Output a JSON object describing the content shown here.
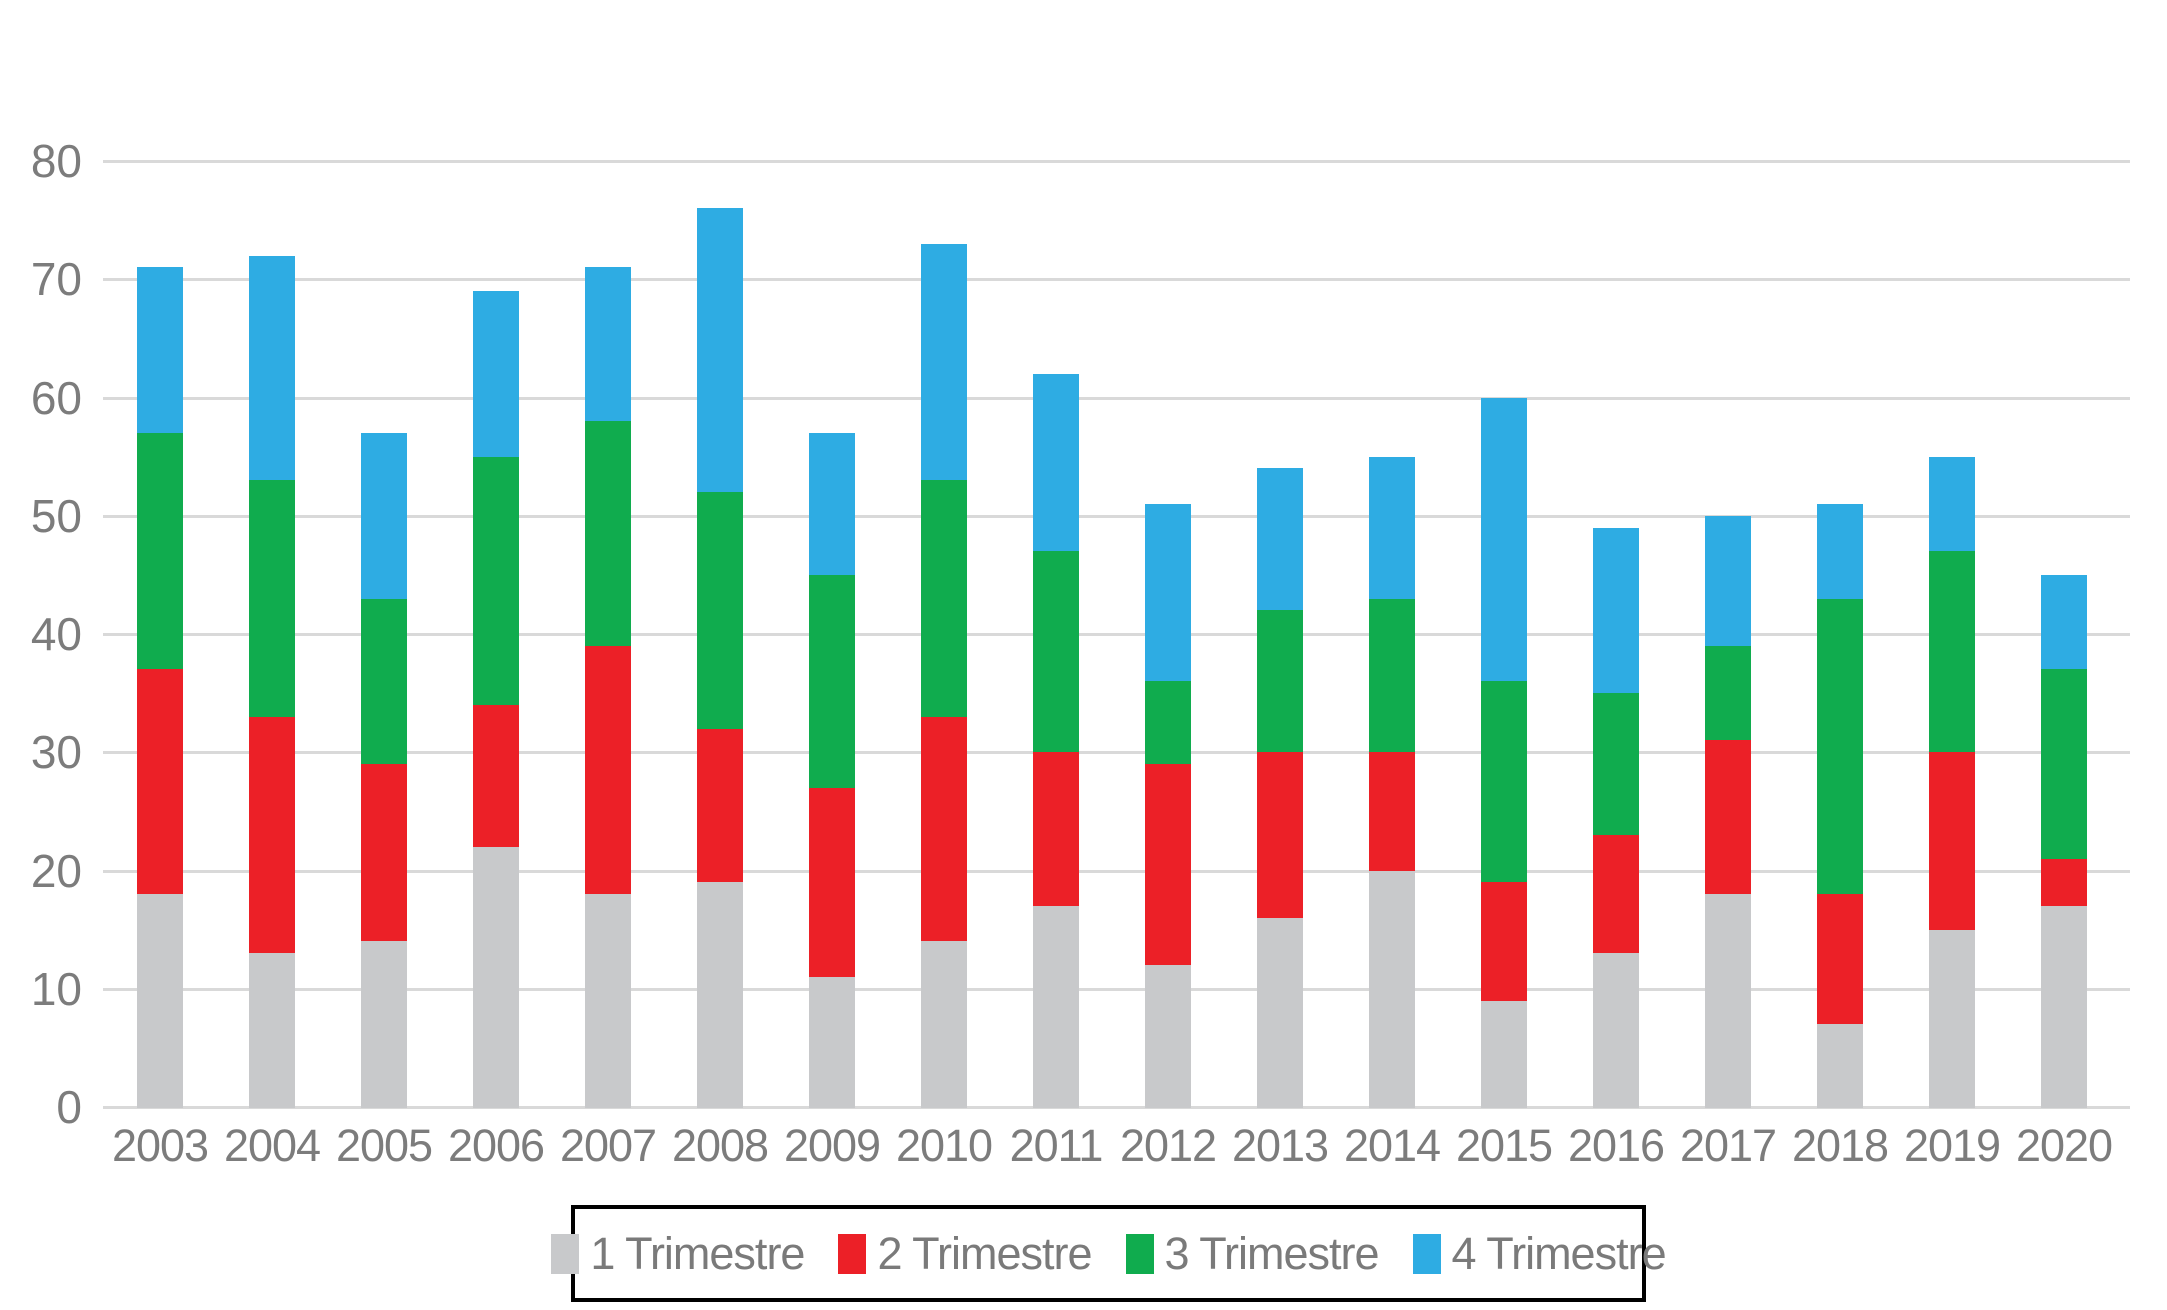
{
  "chart_data": {
    "type": "bar",
    "stacked": true,
    "title": "",
    "xlabel": "",
    "ylabel": "",
    "categories": [
      "2003",
      "2004",
      "2005",
      "2006",
      "2007",
      "2008",
      "2009",
      "2010",
      "2011",
      "2012",
      "2013",
      "2014",
      "2015",
      "2016",
      "2017",
      "2018",
      "2019",
      "2020"
    ],
    "series": [
      {
        "name": "1 Trimestre",
        "color": "#c8c9cb",
        "values": [
          18,
          13,
          14,
          22,
          18,
          19,
          11,
          14,
          17,
          12,
          16,
          20,
          9,
          13,
          18,
          7,
          15,
          17
        ]
      },
      {
        "name": "2 Trimestre",
        "color": "#ec2027",
        "values": [
          19,
          20,
          15,
          12,
          21,
          13,
          16,
          19,
          13,
          17,
          14,
          10,
          10,
          10,
          13,
          11,
          15,
          4
        ]
      },
      {
        "name": "3 Trimestre",
        "color": "#10ac4e",
        "values": [
          20,
          20,
          14,
          21,
          19,
          20,
          18,
          20,
          17,
          7,
          12,
          13,
          17,
          12,
          8,
          25,
          17,
          16
        ]
      },
      {
        "name": "4 Trimestre",
        "color": "#2eace3",
        "values": [
          14,
          19,
          14,
          14,
          13,
          24,
          12,
          20,
          15,
          15,
          12,
          12,
          24,
          14,
          11,
          8,
          8,
          8
        ]
      }
    ],
    "stack_totals": [
      71,
      72,
      57,
      69,
      71,
      76,
      57,
      73,
      62,
      51,
      54,
      55,
      60,
      49,
      50,
      51,
      55,
      45
    ],
    "ylim": [
      0,
      80
    ],
    "yticks": [
      0,
      10,
      20,
      30,
      40,
      50,
      60,
      70,
      80
    ],
    "grid": true,
    "gridline_color": "#d9d9d9",
    "axis_label_color": "#7c7c7c",
    "legend_position": "bottom",
    "legend_border_color": "#000000"
  }
}
